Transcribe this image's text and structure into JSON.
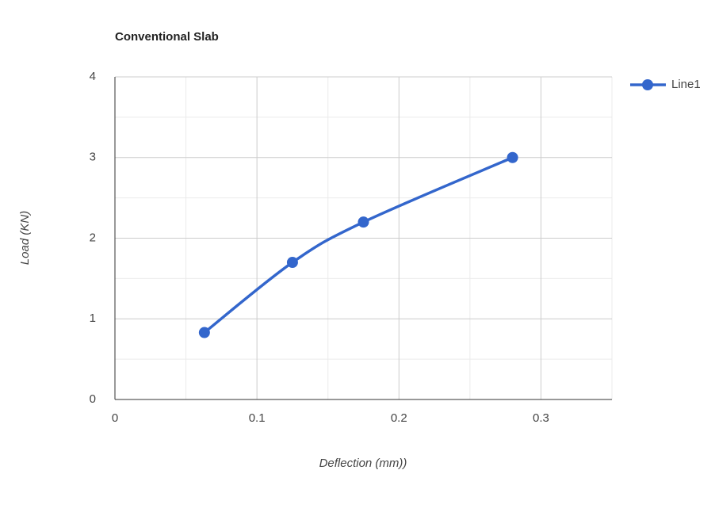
{
  "chart_data": {
    "type": "line",
    "title": "Conventional Slab",
    "x_label": "Deflection (mm))",
    "y_label": "Load (KN)",
    "x": [
      0.063,
      0.125,
      0.175,
      0.28
    ],
    "series": [
      {
        "name": "Line1",
        "color": "#3366cc",
        "values": [
          0.83,
          1.7,
          2.2,
          3
        ]
      }
    ],
    "xlim": [
      0,
      0.35
    ],
    "xticks": [
      0,
      0.1,
      0.2,
      0.3
    ],
    "ylim": [
      0,
      4
    ],
    "yticks": [
      0,
      1,
      2,
      3,
      4
    ],
    "grid": true,
    "legend": "right",
    "smooth": true
  }
}
